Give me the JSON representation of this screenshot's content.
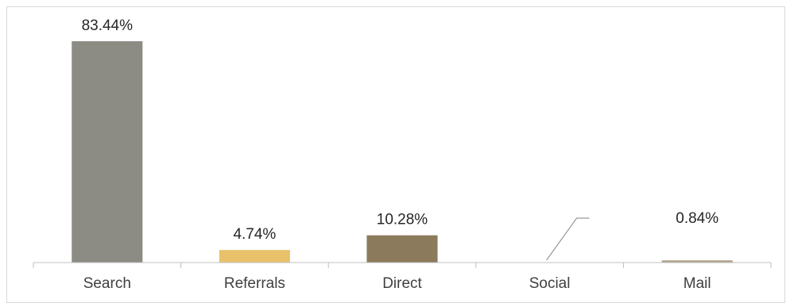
{
  "chart_data": {
    "type": "bar",
    "title": "",
    "xlabel": "",
    "ylabel": "",
    "categories": [
      "Search",
      "Referrals",
      "Direct",
      "Social",
      "Mail"
    ],
    "values": [
      83.44,
      4.74,
      10.28,
      0.06,
      0.84
    ],
    "value_labels": [
      "83.44%",
      "4.74%",
      "10.28%",
      "",
      "0.84%"
    ],
    "colors": [
      "#8c8c84",
      "#e8c16a",
      "#8b7b5c",
      "#8c8c84",
      "#b0a48a"
    ],
    "ylim": [
      0,
      90
    ],
    "grid": false,
    "legend": "none"
  }
}
